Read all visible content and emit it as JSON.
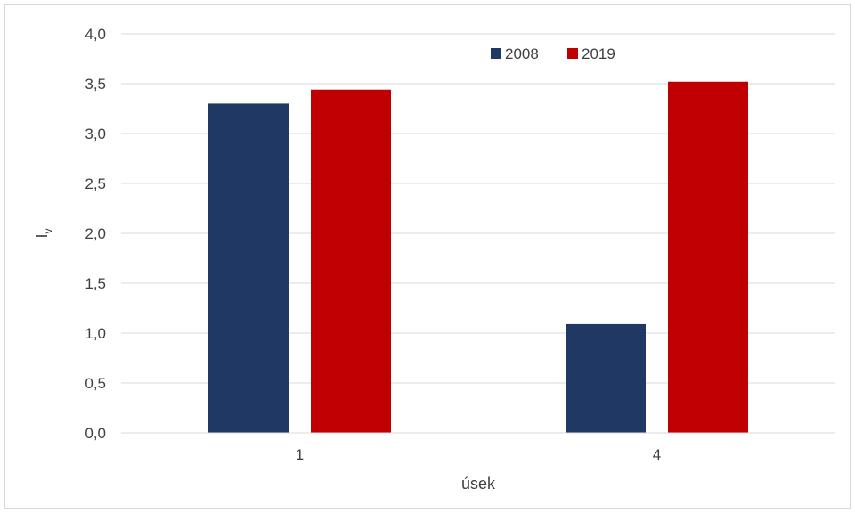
{
  "chart_data": {
    "type": "bar",
    "categories": [
      "1",
      "4"
    ],
    "series": [
      {
        "name": "2008",
        "values": [
          3.3,
          1.09
        ],
        "color": "#203864"
      },
      {
        "name": "2019",
        "values": [
          3.44,
          3.52
        ],
        "color": "#c00000"
      }
    ],
    "xlabel": "úsek",
    "ylabel": "I",
    "ylabel_subscript": "v",
    "ylim": [
      0,
      4
    ],
    "yticks": [
      "0,0",
      "0,5",
      "1,0",
      "1,5",
      "2,0",
      "2,5",
      "3,0",
      "3,5",
      "4,0"
    ],
    "grid": true,
    "legend_position": "top-right"
  }
}
